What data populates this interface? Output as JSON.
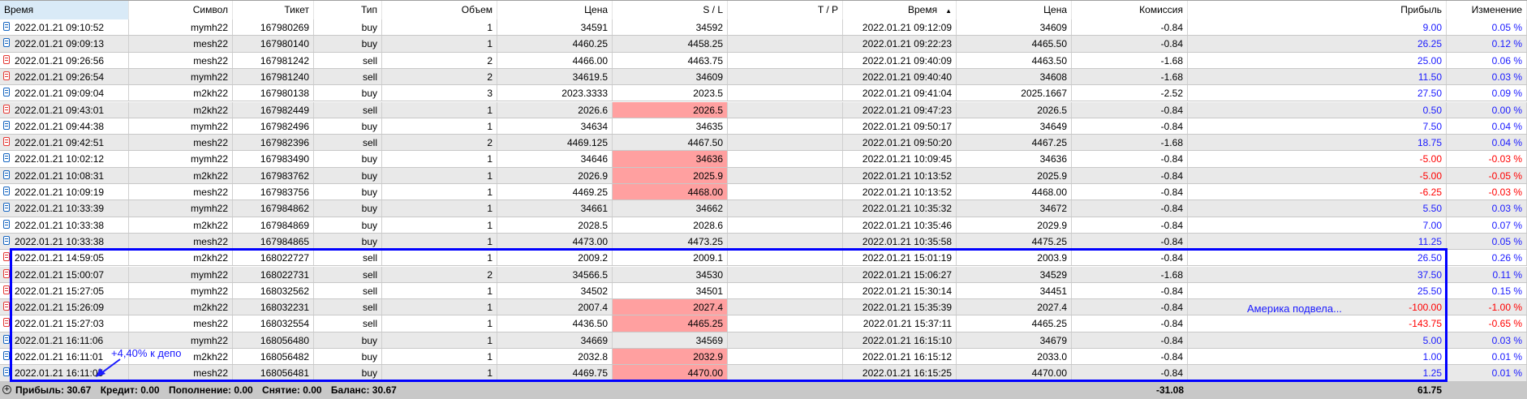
{
  "columns": [
    "Время",
    "Символ",
    "Тикет",
    "Тип",
    "Объем",
    "Цена",
    "S / L",
    "T / P",
    "Время",
    "Цена",
    "Комиссия",
    "Прибыль",
    "Изменение"
  ],
  "sort_indicator": "▲",
  "colors": {
    "profit_positive": "#1a1aff",
    "profit_negative": "#ff0000",
    "sl_highlight": "#ffa0a0",
    "annotation": "#0000ff",
    "buy_icon": "#1565c0",
    "sell_icon": "#e53935"
  },
  "rows": [
    {
      "time": "2022.01.21 09:10:52",
      "symbol": "mymh22",
      "ticket": "167980269",
      "type": "buy",
      "volume": "1",
      "price": "34591",
      "sl": "34592",
      "sl_hit": false,
      "tp": "",
      "close_time": "2022.01.21 09:12:09",
      "close_price": "34609",
      "commission": "-0.84",
      "profit": "9.00",
      "change": "0.05 %"
    },
    {
      "time": "2022.01.21 09:09:13",
      "symbol": "mesh22",
      "ticket": "167980140",
      "type": "buy",
      "volume": "1",
      "price": "4460.25",
      "sl": "4458.25",
      "sl_hit": false,
      "tp": "",
      "close_time": "2022.01.21 09:22:23",
      "close_price": "4465.50",
      "commission": "-0.84",
      "profit": "26.25",
      "change": "0.12 %"
    },
    {
      "time": "2022.01.21 09:26:56",
      "symbol": "mesh22",
      "ticket": "167981242",
      "type": "sell",
      "volume": "2",
      "price": "4466.00",
      "sl": "4463.75",
      "sl_hit": false,
      "tp": "",
      "close_time": "2022.01.21 09:40:09",
      "close_price": "4463.50",
      "commission": "-1.68",
      "profit": "25.00",
      "change": "0.06 %"
    },
    {
      "time": "2022.01.21 09:26:54",
      "symbol": "mymh22",
      "ticket": "167981240",
      "type": "sell",
      "volume": "2",
      "price": "34619.5",
      "sl": "34609",
      "sl_hit": false,
      "tp": "",
      "close_time": "2022.01.21 09:40:40",
      "close_price": "34608",
      "commission": "-1.68",
      "profit": "11.50",
      "change": "0.03 %"
    },
    {
      "time": "2022.01.21 09:09:04",
      "symbol": "m2kh22",
      "ticket": "167980138",
      "type": "buy",
      "volume": "3",
      "price": "2023.3333",
      "sl": "2023.5",
      "sl_hit": false,
      "tp": "",
      "close_time": "2022.01.21 09:41:04",
      "close_price": "2025.1667",
      "commission": "-2.52",
      "profit": "27.50",
      "change": "0.09 %"
    },
    {
      "time": "2022.01.21 09:43:01",
      "symbol": "m2kh22",
      "ticket": "167982449",
      "type": "sell",
      "volume": "1",
      "price": "2026.6",
      "sl": "2026.5",
      "sl_hit": true,
      "tp": "",
      "close_time": "2022.01.21 09:47:23",
      "close_price": "2026.5",
      "commission": "-0.84",
      "profit": "0.50",
      "change": "0.00 %"
    },
    {
      "time": "2022.01.21 09:44:38",
      "symbol": "mymh22",
      "ticket": "167982496",
      "type": "buy",
      "volume": "1",
      "price": "34634",
      "sl": "34635",
      "sl_hit": false,
      "tp": "",
      "close_time": "2022.01.21 09:50:17",
      "close_price": "34649",
      "commission": "-0.84",
      "profit": "7.50",
      "change": "0.04 %"
    },
    {
      "time": "2022.01.21 09:42:51",
      "symbol": "mesh22",
      "ticket": "167982396",
      "type": "sell",
      "volume": "2",
      "price": "4469.125",
      "sl": "4467.50",
      "sl_hit": false,
      "tp": "",
      "close_time": "2022.01.21 09:50:20",
      "close_price": "4467.25",
      "commission": "-1.68",
      "profit": "18.75",
      "change": "0.04 %"
    },
    {
      "time": "2022.01.21 10:02:12",
      "symbol": "mymh22",
      "ticket": "167983490",
      "type": "buy",
      "volume": "1",
      "price": "34646",
      "sl": "34636",
      "sl_hit": true,
      "tp": "",
      "close_time": "2022.01.21 10:09:45",
      "close_price": "34636",
      "commission": "-0.84",
      "profit": "-5.00",
      "change": "-0.03 %"
    },
    {
      "time": "2022.01.21 10:08:31",
      "symbol": "m2kh22",
      "ticket": "167983762",
      "type": "buy",
      "volume": "1",
      "price": "2026.9",
      "sl": "2025.9",
      "sl_hit": true,
      "tp": "",
      "close_time": "2022.01.21 10:13:52",
      "close_price": "2025.9",
      "commission": "-0.84",
      "profit": "-5.00",
      "change": "-0.05 %"
    },
    {
      "time": "2022.01.21 10:09:19",
      "symbol": "mesh22",
      "ticket": "167983756",
      "type": "buy",
      "volume": "1",
      "price": "4469.25",
      "sl": "4468.00",
      "sl_hit": true,
      "tp": "",
      "close_time": "2022.01.21 10:13:52",
      "close_price": "4468.00",
      "commission": "-0.84",
      "profit": "-6.25",
      "change": "-0.03 %"
    },
    {
      "time": "2022.01.21 10:33:39",
      "symbol": "mymh22",
      "ticket": "167984862",
      "type": "buy",
      "volume": "1",
      "price": "34661",
      "sl": "34662",
      "sl_hit": false,
      "tp": "",
      "close_time": "2022.01.21 10:35:32",
      "close_price": "34672",
      "commission": "-0.84",
      "profit": "5.50",
      "change": "0.03 %"
    },
    {
      "time": "2022.01.21 10:33:38",
      "symbol": "m2kh22",
      "ticket": "167984869",
      "type": "buy",
      "volume": "1",
      "price": "2028.5",
      "sl": "2028.6",
      "sl_hit": false,
      "tp": "",
      "close_time": "2022.01.21 10:35:46",
      "close_price": "2029.9",
      "commission": "-0.84",
      "profit": "7.00",
      "change": "0.07 %"
    },
    {
      "time": "2022.01.21 10:33:38",
      "symbol": "mesh22",
      "ticket": "167984865",
      "type": "buy",
      "volume": "1",
      "price": "4473.00",
      "sl": "4473.25",
      "sl_hit": false,
      "tp": "",
      "close_time": "2022.01.21 10:35:58",
      "close_price": "4475.25",
      "commission": "-0.84",
      "profit": "11.25",
      "change": "0.05 %"
    },
    {
      "time": "2022.01.21 14:59:05",
      "symbol": "m2kh22",
      "ticket": "168022727",
      "type": "sell",
      "volume": "1",
      "price": "2009.2",
      "sl": "2009.1",
      "sl_hit": false,
      "tp": "",
      "close_time": "2022.01.21 15:01:19",
      "close_price": "2003.9",
      "commission": "-0.84",
      "profit": "26.50",
      "change": "0.26 %"
    },
    {
      "time": "2022.01.21 15:00:07",
      "symbol": "mymh22",
      "ticket": "168022731",
      "type": "sell",
      "volume": "2",
      "price": "34566.5",
      "sl": "34530",
      "sl_hit": false,
      "tp": "",
      "close_time": "2022.01.21 15:06:27",
      "close_price": "34529",
      "commission": "-1.68",
      "profit": "37.50",
      "change": "0.11 %"
    },
    {
      "time": "2022.01.21 15:27:05",
      "symbol": "mymh22",
      "ticket": "168032562",
      "type": "sell",
      "volume": "1",
      "price": "34502",
      "sl": "34501",
      "sl_hit": false,
      "tp": "",
      "close_time": "2022.01.21 15:30:14",
      "close_price": "34451",
      "commission": "-0.84",
      "profit": "25.50",
      "change": "0.15 %"
    },
    {
      "time": "2022.01.21 15:26:09",
      "symbol": "m2kh22",
      "ticket": "168032231",
      "type": "sell",
      "volume": "1",
      "price": "2007.4",
      "sl": "2027.4",
      "sl_hit": true,
      "tp": "",
      "close_time": "2022.01.21 15:35:39",
      "close_price": "2027.4",
      "commission": "-0.84",
      "profit": "-100.00",
      "change": "-1.00 %"
    },
    {
      "time": "2022.01.21 15:27:03",
      "symbol": "mesh22",
      "ticket": "168032554",
      "type": "sell",
      "volume": "1",
      "price": "4436.50",
      "sl": "4465.25",
      "sl_hit": true,
      "tp": "",
      "close_time": "2022.01.21 15:37:11",
      "close_price": "4465.25",
      "commission": "-0.84",
      "profit": "-143.75",
      "change": "-0.65 %"
    },
    {
      "time": "2022.01.21 16:11:06",
      "symbol": "mymh22",
      "ticket": "168056480",
      "type": "buy",
      "volume": "1",
      "price": "34669",
      "sl": "34569",
      "sl_hit": false,
      "tp": "",
      "close_time": "2022.01.21 16:15:10",
      "close_price": "34679",
      "commission": "-0.84",
      "profit": "5.00",
      "change": "0.03 %"
    },
    {
      "time": "2022.01.21 16:11:01",
      "symbol": "m2kh22",
      "ticket": "168056482",
      "type": "buy",
      "volume": "1",
      "price": "2032.8",
      "sl": "2032.9",
      "sl_hit": true,
      "tp": "",
      "close_time": "2022.01.21 16:15:12",
      "close_price": "2033.0",
      "commission": "-0.84",
      "profit": "1.00",
      "change": "0.01 %"
    },
    {
      "time": "2022.01.21 16:11:05",
      "symbol": "mesh22",
      "ticket": "168056481",
      "type": "buy",
      "volume": "1",
      "price": "4469.75",
      "sl": "4470.00",
      "sl_hit": true,
      "tp": "",
      "close_time": "2022.01.21 16:15:25",
      "close_price": "4470.00",
      "commission": "-0.84",
      "profit": "1.25",
      "change": "0.01 %"
    }
  ],
  "footer": {
    "profit": "Прибыль: 30.67",
    "credit": "Кредит: 0.00",
    "deposit": "Пополнение: 0.00",
    "withdrawal": "Снятие: 0.00",
    "balance": "Баланс: 30.67",
    "commission_total": "-31.08",
    "profit_total": "61.75"
  },
  "annotations": {
    "deposit_gain": "+4,40% к депо",
    "america_note": "Америка подвела..."
  }
}
